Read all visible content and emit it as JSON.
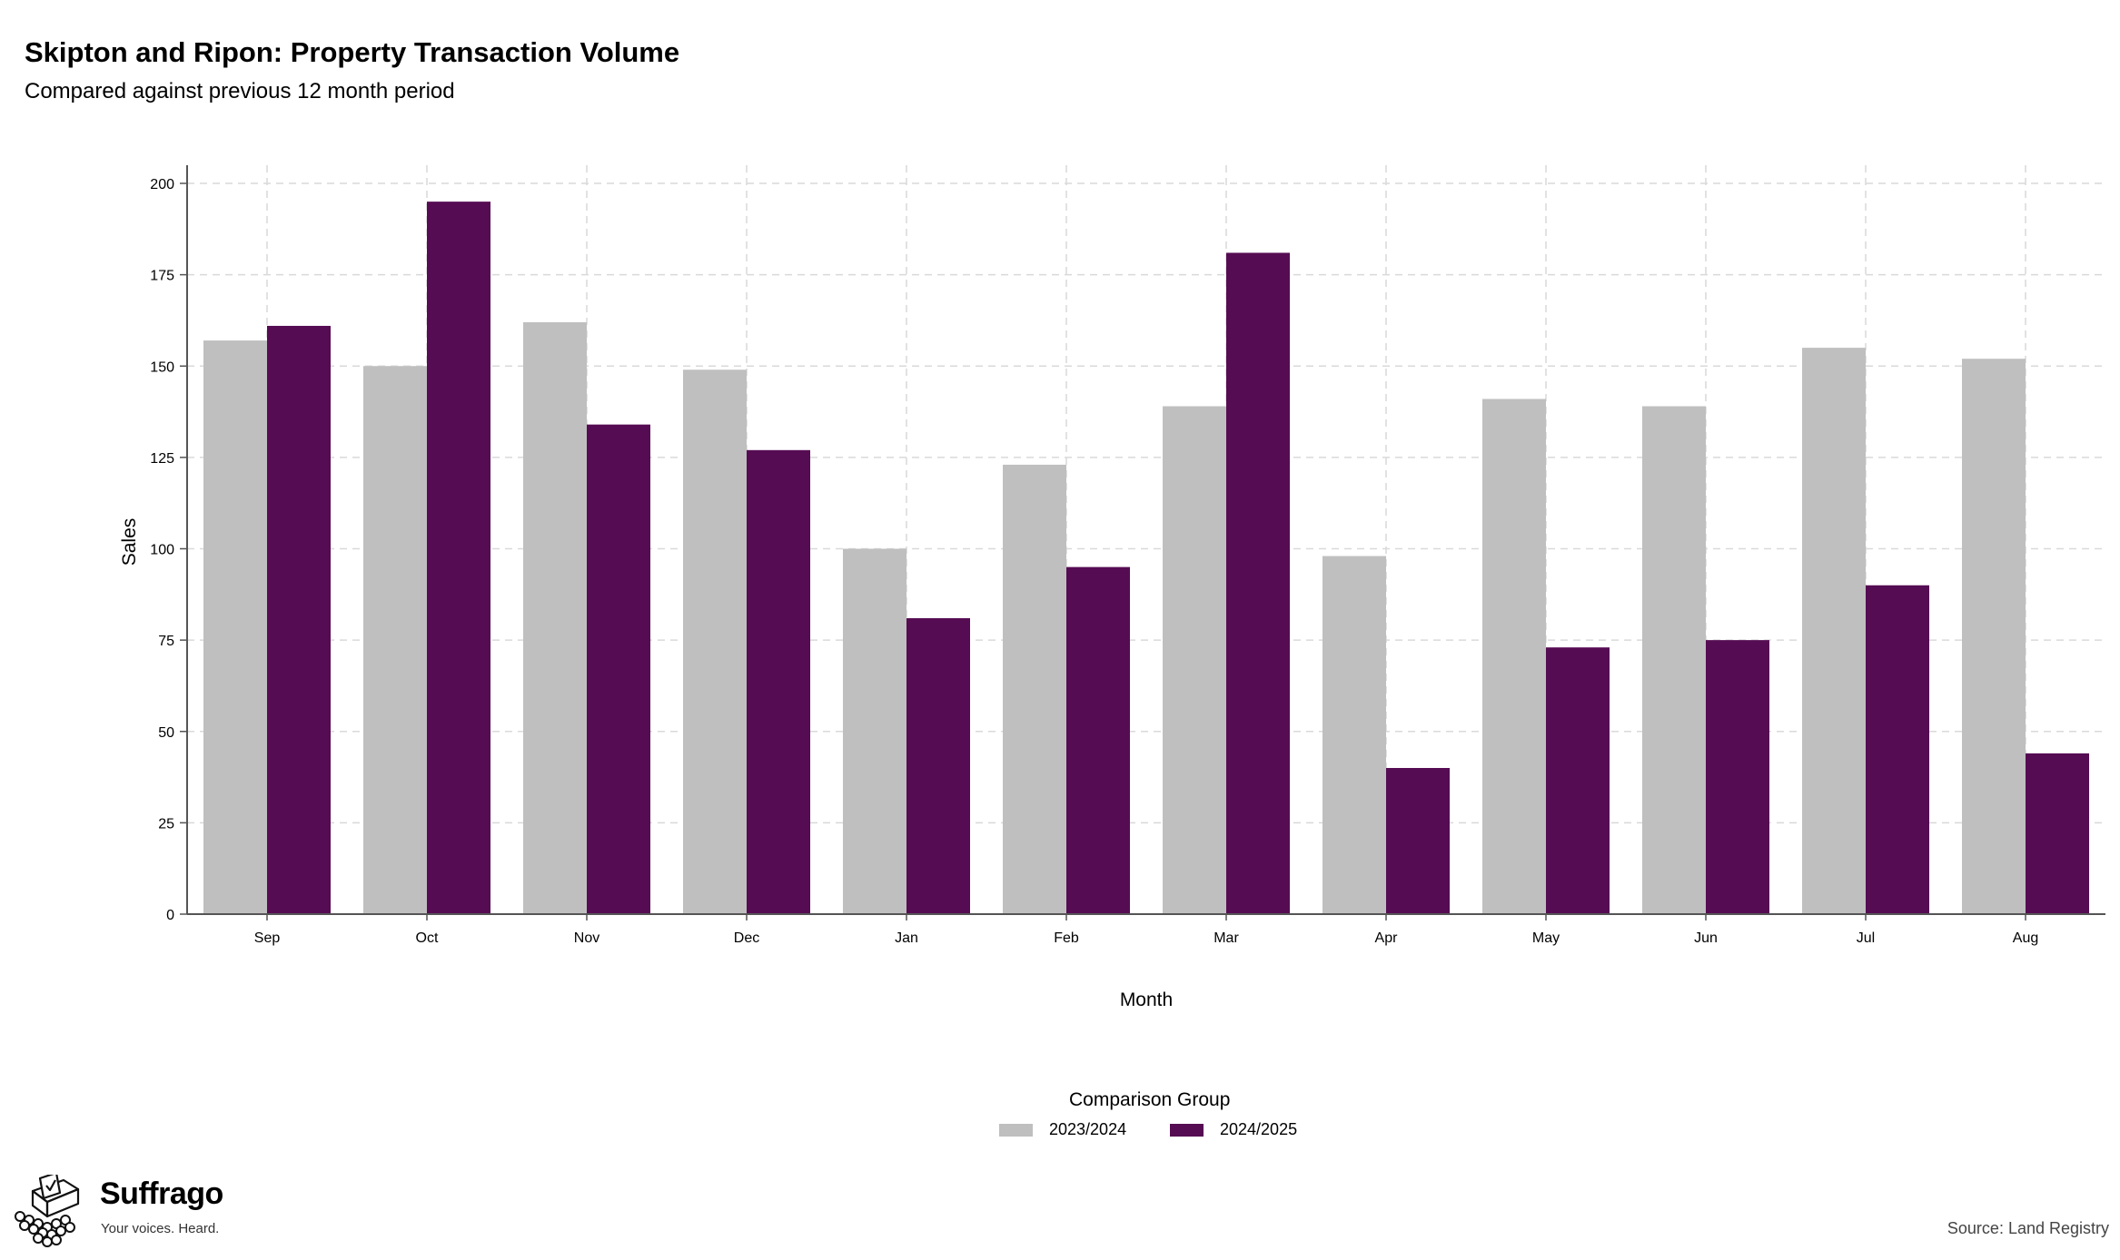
{
  "title": "Skipton and Ripon: Property Transaction Volume",
  "subtitle": "Compared against previous 12 month period",
  "brand": {
    "name": "Suffrago",
    "tagline": "Your voices. Heard.",
    "icon": "ballot-box-logo-icon"
  },
  "source": "Source: Land Registry",
  "legend": {
    "title": "Comparison Group",
    "items": [
      {
        "label": "2023/2024",
        "color": "#bfbfbf"
      },
      {
        "label": "2024/2025",
        "color": "#560c53"
      }
    ]
  },
  "chart_data": {
    "type": "bar",
    "xlabel": "Month",
    "ylabel": "Sales",
    "ylim": [
      0,
      200
    ],
    "yticks": [
      0,
      25,
      50,
      75,
      100,
      125,
      150,
      175,
      200
    ],
    "grid": true,
    "legend_position": "bottom",
    "categories": [
      "Sep",
      "Oct",
      "Nov",
      "Dec",
      "Jan",
      "Feb",
      "Mar",
      "Apr",
      "May",
      "Jun",
      "Jul",
      "Aug"
    ],
    "series": [
      {
        "name": "2023/2024",
        "color": "#bfbfbf",
        "values": [
          157,
          150,
          162,
          149,
          100,
          123,
          139,
          98,
          141,
          139,
          155,
          152
        ]
      },
      {
        "name": "2024/2025",
        "color": "#560c53",
        "values": [
          161,
          195,
          134,
          127,
          81,
          95,
          181,
          40,
          73,
          75,
          90,
          44
        ]
      }
    ]
  }
}
